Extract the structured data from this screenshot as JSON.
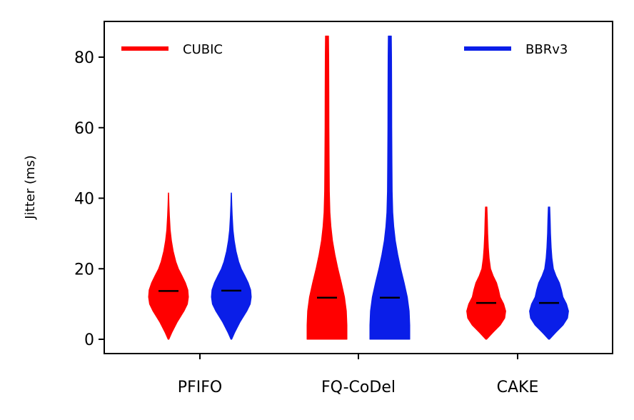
{
  "chart_data": {
    "type": "violin",
    "title": "",
    "xlabel": "",
    "ylabel": "Jitter (ms)",
    "ylim": [
      -4,
      90
    ],
    "yticks": [
      0,
      20,
      40,
      60,
      80
    ],
    "categories": [
      "PFIFO",
      "FQ-CoDel",
      "CAKE"
    ],
    "series": [
      {
        "name": "CUBIC",
        "color": "#ff0000",
        "distributions": [
          {
            "category": "PFIFO",
            "min": 0,
            "max": 41.5,
            "median": 13.7,
            "profile": [
              [
                0,
                0.02
              ],
              [
                2,
                0.18
              ],
              [
                5,
                0.45
              ],
              [
                8,
                0.78
              ],
              [
                10,
                0.95
              ],
              [
                12,
                1.0
              ],
              [
                14,
                0.97
              ],
              [
                16,
                0.85
              ],
              [
                18,
                0.68
              ],
              [
                20,
                0.5
              ],
              [
                22,
                0.37
              ],
              [
                25,
                0.24
              ],
              [
                28,
                0.15
              ],
              [
                31,
                0.09
              ],
              [
                35,
                0.05
              ],
              [
                38,
                0.03
              ],
              [
                41.5,
                0.01
              ]
            ]
          },
          {
            "category": "FQ-CoDel",
            "min": 0,
            "max": 86,
            "median": 11.8,
            "profile": [
              [
                0,
                1.0
              ],
              [
                4,
                1.0
              ],
              [
                8,
                0.97
              ],
              [
                12,
                0.88
              ],
              [
                16,
                0.72
              ],
              [
                20,
                0.55
              ],
              [
                24,
                0.4
              ],
              [
                28,
                0.28
              ],
              [
                32,
                0.2
              ],
              [
                36,
                0.15
              ],
              [
                42,
                0.12
              ],
              [
                50,
                0.11
              ],
              [
                60,
                0.1
              ],
              [
                70,
                0.095
              ],
              [
                80,
                0.09
              ],
              [
                86,
                0.08
              ]
            ]
          },
          {
            "category": "CAKE",
            "min": 0,
            "max": 37.5,
            "median": 10.3,
            "profile": [
              [
                0,
                0.02
              ],
              [
                2,
                0.35
              ],
              [
                4,
                0.7
              ],
              [
                6,
                0.93
              ],
              [
                8,
                0.98
              ],
              [
                10,
                0.88
              ],
              [
                12,
                0.7
              ],
              [
                14,
                0.62
              ],
              [
                16,
                0.52
              ],
              [
                18,
                0.35
              ],
              [
                20,
                0.22
              ],
              [
                23,
                0.15
              ],
              [
                26,
                0.11
              ],
              [
                30,
                0.08
              ],
              [
                34,
                0.06
              ],
              [
                37.5,
                0.04
              ]
            ]
          }
        ]
      },
      {
        "name": "BBRv3",
        "color": "#0a1ee8",
        "distributions": [
          {
            "category": "PFIFO",
            "min": 0,
            "max": 41.5,
            "median": 13.8,
            "profile": [
              [
                0,
                0.02
              ],
              [
                2,
                0.18
              ],
              [
                5,
                0.45
              ],
              [
                8,
                0.78
              ],
              [
                10,
                0.95
              ],
              [
                12,
                1.0
              ],
              [
                14,
                0.97
              ],
              [
                16,
                0.85
              ],
              [
                18,
                0.68
              ],
              [
                20,
                0.5
              ],
              [
                22,
                0.37
              ],
              [
                25,
                0.24
              ],
              [
                28,
                0.15
              ],
              [
                31,
                0.09
              ],
              [
                35,
                0.05
              ],
              [
                38,
                0.03
              ],
              [
                41.5,
                0.01
              ]
            ]
          },
          {
            "category": "FQ-CoDel",
            "min": 0,
            "max": 86,
            "median": 11.8,
            "profile": [
              [
                0,
                1.0
              ],
              [
                4,
                1.0
              ],
              [
                8,
                0.97
              ],
              [
                12,
                0.88
              ],
              [
                16,
                0.72
              ],
              [
                20,
                0.55
              ],
              [
                24,
                0.4
              ],
              [
                28,
                0.28
              ],
              [
                32,
                0.2
              ],
              [
                36,
                0.15
              ],
              [
                42,
                0.12
              ],
              [
                50,
                0.11
              ],
              [
                60,
                0.1
              ],
              [
                70,
                0.095
              ],
              [
                80,
                0.09
              ],
              [
                86,
                0.08
              ]
            ]
          },
          {
            "category": "CAKE",
            "min": 0,
            "max": 37.5,
            "median": 10.3,
            "profile": [
              [
                0,
                0.02
              ],
              [
                2,
                0.35
              ],
              [
                4,
                0.7
              ],
              [
                6,
                0.93
              ],
              [
                8,
                0.98
              ],
              [
                10,
                0.88
              ],
              [
                12,
                0.7
              ],
              [
                14,
                0.62
              ],
              [
                16,
                0.52
              ],
              [
                18,
                0.35
              ],
              [
                20,
                0.22
              ],
              [
                23,
                0.15
              ],
              [
                26,
                0.11
              ],
              [
                30,
                0.08
              ],
              [
                34,
                0.06
              ],
              [
                37.5,
                0.04
              ]
            ]
          }
        ]
      }
    ],
    "legend": [
      {
        "label": "CUBIC",
        "color": "#ff0000",
        "position": "top-left"
      },
      {
        "label": "BBRv3",
        "color": "#0a1ee8",
        "position": "top-right"
      }
    ]
  }
}
